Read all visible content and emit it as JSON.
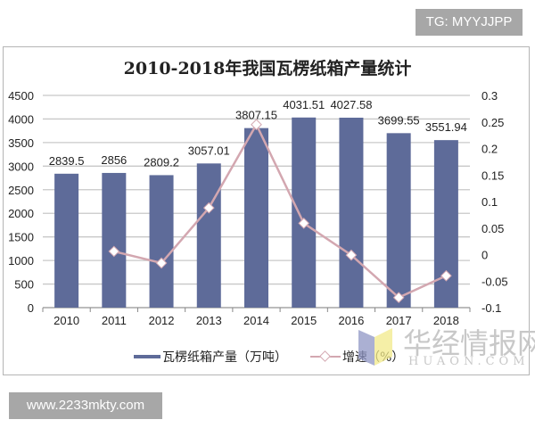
{
  "badges": {
    "top_right": "TG: MYYJJPP",
    "bottom_left": "www.2233mkty.com"
  },
  "watermark": {
    "main": "华经情报网",
    "sub": "HUAON.COM"
  },
  "colors": {
    "bar": "#5e6b99",
    "line": "#d3a7b0",
    "grid": "#c8c8c8",
    "badge_bg": "#a7a7a7"
  },
  "chart_data": {
    "type": "bar",
    "title": "2010-2018年我国瓦楞纸箱产量统计",
    "categories": [
      "2010",
      "2011",
      "2012",
      "2013",
      "2014",
      "2015",
      "2016",
      "2017",
      "2018"
    ],
    "series": [
      {
        "name": "瓦楞纸箱产量（万吨）",
        "type": "bar",
        "axis": "left",
        "values": [
          2839.5,
          2856,
          2809.2,
          3057.01,
          3807.15,
          4031.51,
          4027.58,
          3699.55,
          3551.94
        ],
        "labels": [
          "2839.5",
          "2856",
          "2809.2",
          "3057.01",
          "3807.15",
          "4031.51",
          "4027.58",
          "3699.55",
          "3551.94"
        ]
      },
      {
        "name": "增速（%）",
        "type": "line",
        "axis": "right",
        "values": [
          null,
          0.006,
          -0.016,
          0.088,
          0.245,
          0.059,
          -0.001,
          -0.081,
          -0.04
        ]
      }
    ],
    "y_left": {
      "range": [
        0,
        4500
      ],
      "ticks": [
        "0",
        "500",
        "1000",
        "1500",
        "2000",
        "2500",
        "3000",
        "3500",
        "4000",
        "4500"
      ]
    },
    "y_right": {
      "range": [
        -0.1,
        0.3
      ],
      "ticks": [
        "-0.1",
        "-0.05",
        "0",
        "0.05",
        "0.1",
        "0.15",
        "0.2",
        "0.25",
        "0.3"
      ]
    },
    "xlabel": "",
    "ylabel": "",
    "grid": true,
    "legend_position": "bottom",
    "legend": [
      "瓦楞纸箱产量（万吨）",
      "增速（%）"
    ]
  }
}
